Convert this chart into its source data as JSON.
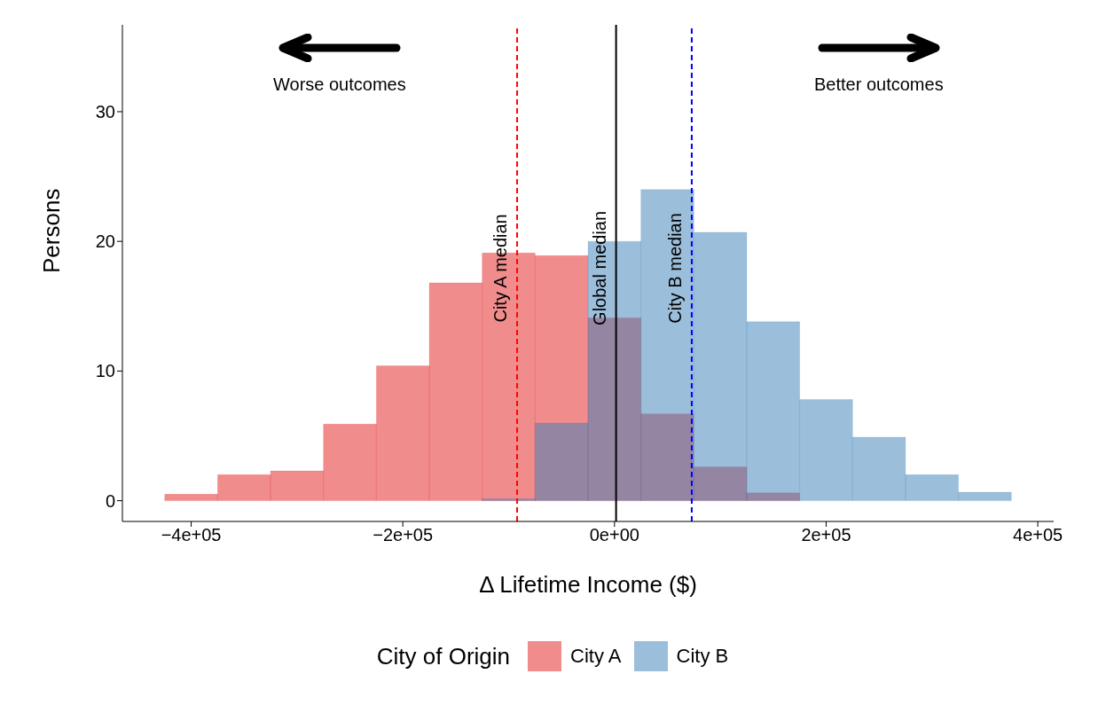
{
  "chart_data": {
    "type": "histogram",
    "xlabel": "Δ Lifetime Income ($)",
    "ylabel": "Persons",
    "legend_title": "City of Origin",
    "legend": "bottom",
    "grid": false,
    "bins": [
      -425000,
      -375000,
      -325000,
      -275000,
      -225000,
      -175000,
      -125000,
      -75000,
      -25000,
      25000,
      75000,
      125000,
      175000,
      225000,
      275000,
      325000,
      375000
    ],
    "series": [
      {
        "name": "City A",
        "color": "#e41a1c",
        "values": [
          0.5,
          2,
          2.3,
          5.9,
          10.4,
          16.8,
          19.1,
          18.9,
          14.1,
          6.7,
          2.6,
          0.6,
          null,
          0,
          0,
          0
        ]
      },
      {
        "name": "City B",
        "color": "#377eb8",
        "values": [
          0,
          0,
          0,
          0,
          0,
          0,
          0.15,
          6,
          20,
          24,
          20.7,
          13.8,
          7.8,
          4.9,
          2,
          0.65
        ]
      }
    ],
    "xlim": [
      -465000,
      415000
    ],
    "xticks": [
      {
        "value": -400000,
        "label": "−4e+05"
      },
      {
        "value": -200000,
        "label": "−2e+05"
      },
      {
        "value": 0,
        "label": "0e+00"
      },
      {
        "value": 200000,
        "label": "2e+05"
      },
      {
        "value": 400000,
        "label": "4e+05"
      }
    ],
    "ylim": [
      -1.6,
      36.7
    ],
    "yticks": [
      0,
      10,
      20,
      30
    ],
    "ref_lines": [
      {
        "axis": "x",
        "value": -92000,
        "label": "City A median",
        "color": "#ff0000",
        "line_style": "dashed"
      },
      {
        "axis": "x",
        "value": 1500,
        "label": "Global median",
        "color": "#000000",
        "line_style": "solid"
      },
      {
        "axis": "x",
        "value": 73000,
        "label": "City B median",
        "color": "#0000ff",
        "line_style": "dashed"
      }
    ],
    "annotations": [
      "Worse outcomes",
      "Better outcomes"
    ]
  }
}
